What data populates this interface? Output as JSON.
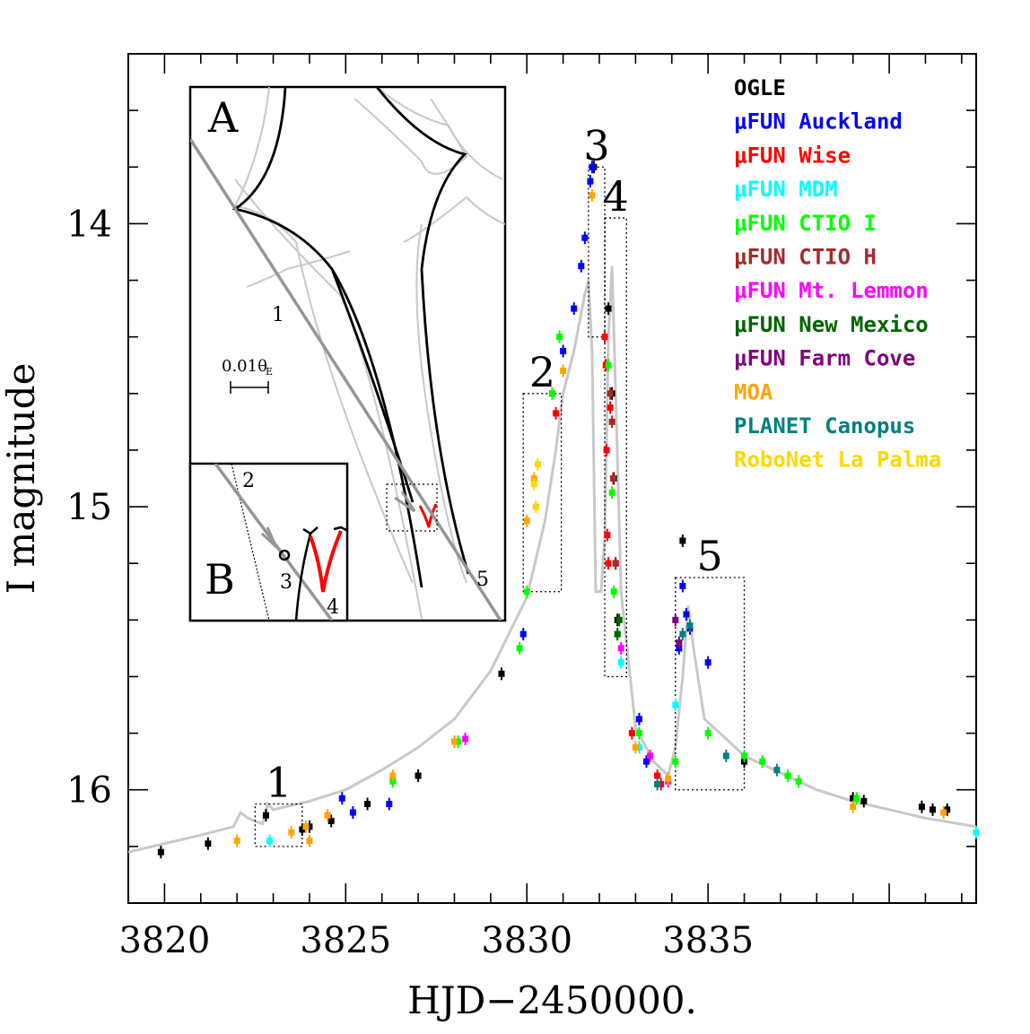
{
  "chart_data": {
    "type": "scatter",
    "xlabel": "HJD−2450000.",
    "ylabel": "I magnitude",
    "xlim": [
      3819,
      3842.4
    ],
    "ylim": [
      16.4,
      13.4
    ],
    "y_inverted": true,
    "x_ticks": [
      3820,
      3825,
      3830,
      3835
    ],
    "x_tick_labels": [
      "3820",
      "3825",
      "3830",
      "3835"
    ],
    "y_ticks": [
      14,
      15,
      16
    ],
    "y_tick_labels": [
      "14",
      "15",
      "16"
    ],
    "model_curve_color": "#c8c8c8",
    "model_curve": [
      [
        3819.0,
        16.22
      ],
      [
        3820.0,
        16.19
      ],
      [
        3821.0,
        16.16
      ],
      [
        3821.9,
        16.13
      ],
      [
        3822.1,
        16.08
      ],
      [
        3822.3,
        16.1
      ],
      [
        3822.5,
        16.11
      ],
      [
        3822.7,
        16.12
      ],
      [
        3822.85,
        16.05
      ],
      [
        3823.0,
        16.07
      ],
      [
        3824.0,
        16.04
      ],
      [
        3825.0,
        16.0
      ],
      [
        3826.0,
        15.93
      ],
      [
        3827.0,
        15.85
      ],
      [
        3828.0,
        15.75
      ],
      [
        3829.0,
        15.58
      ],
      [
        3830.0,
        15.32
      ],
      [
        3830.5,
        15.05
      ],
      [
        3830.8,
        14.8
      ],
      [
        3831.0,
        14.6
      ],
      [
        3831.3,
        14.45
      ],
      [
        3831.6,
        14.25
      ],
      [
        3831.7,
        14.2
      ],
      [
        3831.8,
        14.45
      ],
      [
        3831.9,
        15.3
      ],
      [
        3832.05,
        15.3
      ],
      [
        3832.15,
        15.1
      ],
      [
        3832.25,
        14.4
      ],
      [
        3832.35,
        14.15
      ],
      [
        3832.45,
        14.6
      ],
      [
        3832.6,
        15.3
      ],
      [
        3833.0,
        15.78
      ],
      [
        3833.5,
        15.9
      ],
      [
        3833.9,
        15.95
      ],
      [
        3834.1,
        15.85
      ],
      [
        3834.3,
        15.6
      ],
      [
        3834.45,
        15.35
      ],
      [
        3834.6,
        15.5
      ],
      [
        3834.9,
        15.75
      ],
      [
        3835.5,
        15.82
      ],
      [
        3836.0,
        15.88
      ],
      [
        3837.0,
        15.94
      ],
      [
        3838.0,
        16.0
      ],
      [
        3839.0,
        16.04
      ],
      [
        3840.0,
        16.07
      ],
      [
        3841.0,
        16.1
      ],
      [
        3842.4,
        16.13
      ]
    ],
    "series": [
      {
        "name": "OGLE",
        "color": "#000000",
        "points": [
          [
            3819.9,
            16.22
          ],
          [
            3821.2,
            16.19
          ],
          [
            3822.8,
            16.09
          ],
          [
            3823.8,
            16.14
          ],
          [
            3824.0,
            16.13
          ],
          [
            3824.6,
            16.11
          ],
          [
            3825.6,
            16.05
          ],
          [
            3827.0,
            15.95
          ],
          [
            3829.3,
            15.59
          ],
          [
            3831.85,
            13.8
          ],
          [
            3832.25,
            14.3
          ],
          [
            3832.35,
            14.6
          ],
          [
            3832.4,
            14.9
          ],
          [
            3832.45,
            15.2
          ],
          [
            3832.5,
            15.4
          ],
          [
            3834.3,
            15.12
          ],
          [
            3836.0,
            15.9
          ],
          [
            3839.0,
            16.03
          ],
          [
            3839.3,
            16.04
          ],
          [
            3840.9,
            16.06
          ],
          [
            3841.2,
            16.07
          ],
          [
            3841.6,
            16.07
          ]
        ]
      },
      {
        "name": "μFUN Auckland",
        "color": "#0000ff",
        "points": [
          [
            3824.9,
            16.03
          ],
          [
            3825.2,
            16.08
          ],
          [
            3826.2,
            16.05
          ],
          [
            3829.9,
            15.45
          ],
          [
            3831.0,
            14.45
          ],
          [
            3831.3,
            14.3
          ],
          [
            3831.5,
            14.15
          ],
          [
            3831.6,
            14.05
          ],
          [
            3831.75,
            13.85
          ],
          [
            3831.8,
            13.8
          ],
          [
            3833.1,
            15.75
          ],
          [
            3833.3,
            15.9
          ],
          [
            3834.2,
            15.5
          ],
          [
            3834.3,
            15.28
          ],
          [
            3834.4,
            15.38
          ],
          [
            3834.5,
            15.43
          ],
          [
            3835.0,
            15.55
          ]
        ]
      },
      {
        "name": "μFUN Wise",
        "color": "#ff0000",
        "points": [
          [
            3830.7,
            14.6
          ],
          [
            3830.8,
            14.67
          ],
          [
            3832.15,
            14.4
          ],
          [
            3832.18,
            14.5
          ],
          [
            3832.2,
            14.8
          ],
          [
            3832.22,
            15.1
          ],
          [
            3832.25,
            15.2
          ],
          [
            3832.3,
            14.65
          ],
          [
            3832.9,
            15.8
          ],
          [
            3833.6,
            15.95
          ],
          [
            3833.7,
            15.98
          ]
        ]
      },
      {
        "name": "μFUN MDM",
        "color": "#00ffff",
        "points": [
          [
            3822.9,
            16.18
          ],
          [
            3832.6,
            15.55
          ],
          [
            3834.1,
            15.7
          ],
          [
            3833.1,
            15.85
          ],
          [
            3842.4,
            16.15
          ]
        ]
      },
      {
        "name": "μFUN CTIO I",
        "color": "#00ff00",
        "points": [
          [
            3826.3,
            15.97
          ],
          [
            3828.1,
            15.83
          ],
          [
            3829.8,
            15.5
          ],
          [
            3830.0,
            15.3
          ],
          [
            3830.7,
            14.6
          ],
          [
            3830.9,
            14.4
          ],
          [
            3832.25,
            14.5
          ],
          [
            3832.35,
            14.95
          ],
          [
            3832.4,
            15.3
          ],
          [
            3832.5,
            15.45
          ],
          [
            3833.1,
            15.8
          ],
          [
            3834.1,
            15.9
          ],
          [
            3835.0,
            15.8
          ],
          [
            3836.0,
            15.88
          ],
          [
            3836.5,
            15.9
          ],
          [
            3837.2,
            15.95
          ],
          [
            3837.5,
            15.97
          ],
          [
            3839.1,
            16.03
          ]
        ]
      },
      {
        "name": "μFUN CTIO H",
        "color": "#a52a2a",
        "points": [
          [
            3832.3,
            14.6
          ],
          [
            3832.35,
            14.7
          ],
          [
            3832.38,
            14.9
          ],
          [
            3832.45,
            15.2
          ]
        ]
      },
      {
        "name": "μFUN Mt. Lemmon",
        "color": "#ff00ff",
        "points": [
          [
            3828.3,
            15.82
          ],
          [
            3832.6,
            15.5
          ],
          [
            3833.4,
            15.88
          ],
          [
            3833.9,
            15.97
          ]
        ]
      },
      {
        "name": "μFUN New Mexico",
        "color": "#006400",
        "points": [
          [
            3832.5,
            15.45
          ],
          [
            3832.55,
            15.4
          ]
        ]
      },
      {
        "name": "μFUN Farm Cove",
        "color": "#800080",
        "points": [
          [
            3834.1,
            15.4
          ],
          [
            3834.2,
            15.48
          ]
        ]
      },
      {
        "name": "MOA",
        "color": "#ffa500",
        "points": [
          [
            3822.0,
            16.18
          ],
          [
            3823.5,
            16.15
          ],
          [
            3823.9,
            16.13
          ],
          [
            3824.0,
            16.18
          ],
          [
            3824.5,
            16.09
          ],
          [
            3826.3,
            15.95
          ],
          [
            3828.0,
            15.83
          ],
          [
            3830.0,
            15.05
          ],
          [
            3830.2,
            14.9
          ],
          [
            3831.0,
            14.52
          ],
          [
            3831.8,
            13.9
          ],
          [
            3833.0,
            15.85
          ],
          [
            3833.9,
            15.96
          ],
          [
            3839.0,
            16.06
          ],
          [
            3841.5,
            16.08
          ]
        ]
      },
      {
        "name": "PLANET Canopus",
        "color": "#008080",
        "points": [
          [
            3833.6,
            15.98
          ],
          [
            3834.3,
            15.45
          ],
          [
            3834.5,
            15.42
          ],
          [
            3835.5,
            15.88
          ],
          [
            3836.9,
            15.93
          ]
        ]
      },
      {
        "name": "RoboNet La Palma",
        "color": "#ffd700",
        "points": [
          [
            3830.2,
            14.92
          ],
          [
            3830.25,
            15.0
          ],
          [
            3830.3,
            14.85
          ]
        ]
      }
    ],
    "legend_position": "top-right",
    "legend": [
      {
        "label": "OGLE",
        "color": "#000000"
      },
      {
        "label": "μFUN Auckland",
        "color": "#0000ff"
      },
      {
        "label": "μFUN Wise",
        "color": "#ff0000"
      },
      {
        "label": "μFUN MDM",
        "color": "#00ffff"
      },
      {
        "label": "μFUN CTIO I",
        "color": "#00ff00"
      },
      {
        "label": "μFUN CTIO H",
        "color": "#a52a2a"
      },
      {
        "label": "μFUN Mt. Lemmon",
        "color": "#ff00ff"
      },
      {
        "label": "μFUN New Mexico",
        "color": "#006400"
      },
      {
        "label": "μFUN Farm Cove",
        "color": "#800080"
      },
      {
        "label": "MOA",
        "color": "#ffa500"
      },
      {
        "label": "PLANET Canopus",
        "color": "#008080"
      },
      {
        "label": "RoboNet La Palma",
        "color": "#ffd700"
      }
    ],
    "annotations": [
      {
        "label": "1",
        "box": {
          "x": [
            3822.5,
            3823.8
          ],
          "y": [
            16.2,
            16.05
          ]
        }
      },
      {
        "label": "2",
        "box": {
          "x": [
            3829.9,
            3830.95
          ],
          "y": [
            15.3,
            14.6
          ]
        }
      },
      {
        "label": "3",
        "box": {
          "x": [
            3831.7,
            3832.15
          ],
          "y": [
            14.4,
            13.8
          ]
        }
      },
      {
        "label": "4",
        "box": {
          "x": [
            3832.15,
            3832.75
          ],
          "y": [
            15.6,
            13.98
          ]
        }
      },
      {
        "label": "5",
        "box": {
          "x": [
            3834.1,
            3836.0
          ],
          "y": [
            16.0,
            15.25
          ]
        }
      }
    ],
    "inset_a": {
      "label": "A",
      "scale_label": "0.01θ",
      "scale_subscript": "E",
      "point_labels": [
        "1",
        "5"
      ]
    },
    "inset_b": {
      "label": "B",
      "point_labels": [
        "2",
        "3",
        "4"
      ]
    }
  }
}
